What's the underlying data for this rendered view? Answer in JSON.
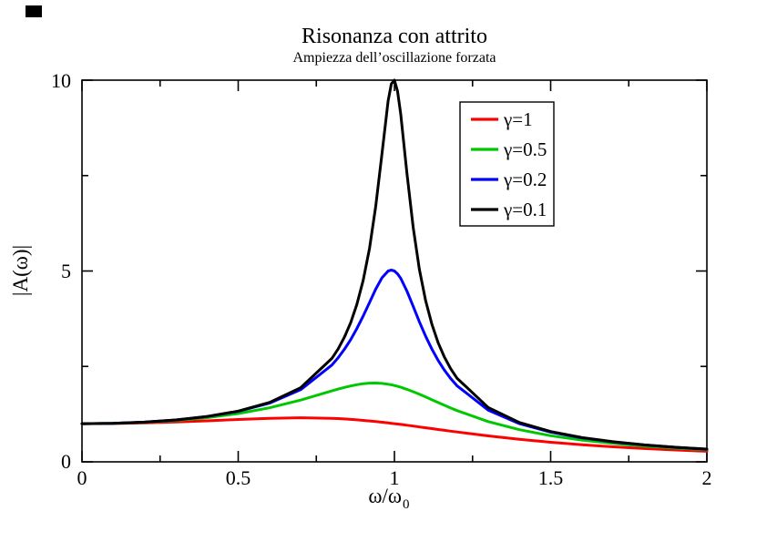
{
  "chart_data": {
    "type": "line",
    "title": "Risonanza con attrito",
    "subtitle": "Ampiezza dell’oscillazione forzata",
    "xlabel_main": "ω/ω",
    "xlabel_sub": "0",
    "ylabel": "|A(ω)|",
    "xlim": [
      0,
      2
    ],
    "ylim": [
      0,
      10
    ],
    "grid": false,
    "legend_position": "upper-right-inside",
    "x_ticks": {
      "values": [
        0,
        0.5,
        1,
        1.5,
        2
      ],
      "labels": [
        "0",
        "0.5",
        "1",
        "1.5",
        "2"
      ]
    },
    "y_ticks": {
      "values": [
        0,
        5,
        10
      ],
      "labels": [
        "0",
        "5",
        "10"
      ]
    },
    "x_minor_ticks": [
      0.25,
      0.75,
      1.25,
      1.75
    ],
    "y_minor_ticks": [
      2.5,
      7.5
    ],
    "x": [
      0,
      0.1,
      0.2,
      0.3,
      0.4,
      0.5,
      0.6,
      0.7,
      0.8,
      0.82,
      0.84,
      0.86,
      0.88,
      0.9,
      0.92,
      0.94,
      0.96,
      0.98,
      0.99,
      1,
      1.01,
      1.02,
      1.04,
      1.06,
      1.08,
      1.1,
      1.12,
      1.14,
      1.16,
      1.18,
      1.2,
      1.3,
      1.4,
      1.5,
      1.6,
      1.7,
      1.8,
      1.9,
      2
    ],
    "series": [
      {
        "name": "γ=1",
        "gamma": 1,
        "color": "#ff0000",
        "values": [
          1,
          1.005,
          1.02,
          1.044,
          1.075,
          1.109,
          1.14,
          1.155,
          1.14,
          1.133,
          1.123,
          1.113,
          1.101,
          1.087,
          1.072,
          1.056,
          1.038,
          1.02,
          1.01,
          1.0,
          0.99,
          0.98,
          0.959,
          0.937,
          0.915,
          0.893,
          0.871,
          0.848,
          0.826,
          0.804,
          0.782,
          0.679,
          0.589,
          0.512,
          0.448,
          0.393,
          0.348,
          0.31,
          0.277
        ]
      },
      {
        "name": "γ=0.5",
        "gamma": 0.5,
        "color": "#00c800",
        "values": [
          1,
          1.009,
          1.036,
          1.084,
          1.158,
          1.265,
          1.415,
          1.617,
          1.858,
          1.906,
          1.95,
          1.989,
          2.022,
          2.047,
          2.062,
          2.065,
          2.056,
          2.034,
          2.019,
          2.0,
          1.979,
          1.955,
          1.9,
          1.837,
          1.77,
          1.699,
          1.626,
          1.553,
          1.481,
          1.411,
          1.344,
          1.055,
          0.842,
          0.686,
          0.57,
          0.483,
          0.414,
          0.36,
          0.316
        ]
      },
      {
        "name": "γ=0.2",
        "gamma": 0.2,
        "color": "#0000ff",
        "values": [
          1,
          1.01,
          1.041,
          1.096,
          1.185,
          1.322,
          1.536,
          1.891,
          2.538,
          2.73,
          2.95,
          3.204,
          3.495,
          3.821,
          4.172,
          4.522,
          4.822,
          5.001,
          5.025,
          5.0,
          4.926,
          4.809,
          4.476,
          4.075,
          3.668,
          3.288,
          2.95,
          2.656,
          2.402,
          2.184,
          1.995,
          1.356,
          1.0,
          0.778,
          0.628,
          0.521,
          0.441,
          0.379,
          0.33
        ]
      },
      {
        "name": "γ=0.1",
        "gamma": 0.1,
        "color": "#000000",
        "values": [
          1,
          1.01,
          1.041,
          1.098,
          1.189,
          1.33,
          1.556,
          1.943,
          2.712,
          2.961,
          3.267,
          3.647,
          4.13,
          4.757,
          5.585,
          6.684,
          8.068,
          9.461,
          9.903,
          10.0,
          9.711,
          9.115,
          7.565,
          6.141,
          5.041,
          4.218,
          3.598,
          3.12,
          2.743,
          2.441,
          2.193,
          1.424,
          1.031,
          0.794,
          0.638,
          0.527,
          0.445,
          0.382,
          0.333
        ]
      }
    ]
  }
}
